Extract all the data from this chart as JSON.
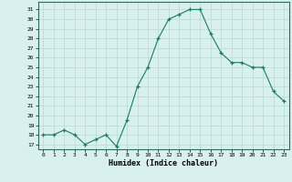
{
  "x": [
    0,
    1,
    2,
    3,
    4,
    5,
    6,
    7,
    8,
    9,
    10,
    11,
    12,
    13,
    14,
    15,
    16,
    17,
    18,
    19,
    20,
    21,
    22,
    23
  ],
  "y": [
    18,
    18,
    18.5,
    18,
    17,
    17.5,
    18,
    16.8,
    19.5,
    23,
    25,
    28,
    30,
    30.5,
    31,
    31,
    28.5,
    26.5,
    25.5,
    25.5,
    25,
    25,
    22.5,
    21.5
  ],
  "title": "",
  "xlabel": "Humidex (Indice chaleur)",
  "ylabel": "",
  "xlim": [
    -0.5,
    23.5
  ],
  "ylim": [
    16.5,
    31.8
  ],
  "yticks": [
    17,
    18,
    19,
    20,
    21,
    22,
    23,
    24,
    25,
    26,
    27,
    28,
    29,
    30,
    31
  ],
  "xticks": [
    0,
    1,
    2,
    3,
    4,
    5,
    6,
    7,
    8,
    9,
    10,
    11,
    12,
    13,
    14,
    15,
    16,
    17,
    18,
    19,
    20,
    21,
    22,
    23
  ],
  "line_color": "#1a7a6a",
  "marker_color": "#1a7a6a",
  "bg_color": "#d8f0ee",
  "grid_color": "#b8d8d4",
  "spine_color": "#336666"
}
